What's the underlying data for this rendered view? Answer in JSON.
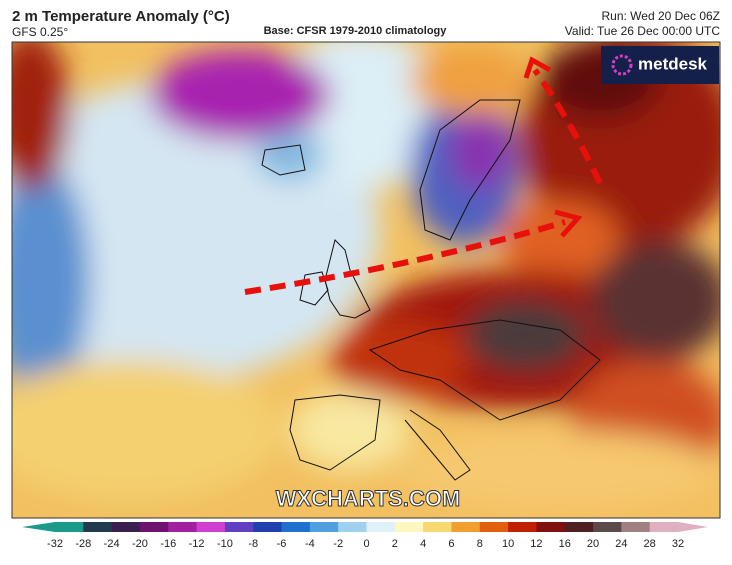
{
  "header": {
    "title": "2 m Temperature Anomaly (°C)",
    "model": "GFS 0.25°",
    "base": "Base: CFSR 1979-2010 climatology",
    "run": "Run: Wed 20 Dec 06Z",
    "valid": "Valid: Tue 26 Dec 00:00 UTC"
  },
  "logo": "metdesk",
  "watermark": "WXCHARTS.COM",
  "colorbar": {
    "ticks": [
      -32,
      -28,
      -24,
      -20,
      -16,
      -12,
      -10,
      -8,
      -6,
      -4,
      -2,
      0,
      2,
      4,
      6,
      8,
      10,
      12,
      16,
      20,
      24,
      28,
      32
    ],
    "colors": [
      "#1a9a8a",
      "#203a50",
      "#3a2050",
      "#701070",
      "#a020a0",
      "#d040d0",
      "#6040c0",
      "#2040b0",
      "#2070d0",
      "#50a0e0",
      "#a0d0f0",
      "#e0f0f8",
      "#fff6c0",
      "#f8d870",
      "#f0a030",
      "#e06010",
      "#c02000",
      "#801010",
      "#502020",
      "#5a4a4a",
      "#a08080",
      "#e0b0c0"
    ]
  }
}
